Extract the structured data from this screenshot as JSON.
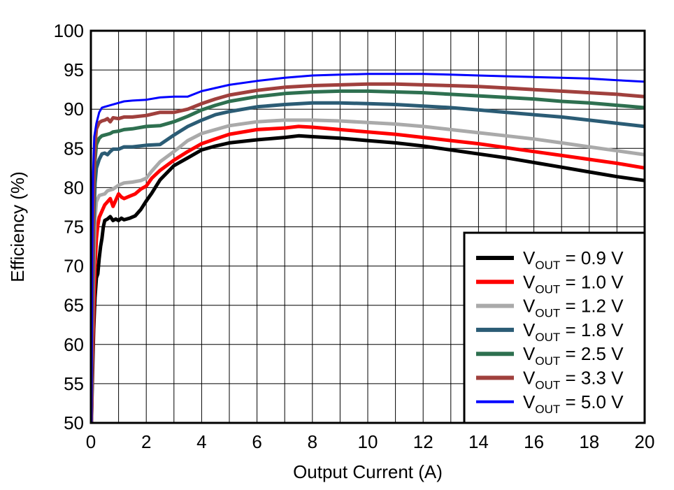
{
  "chart_data": {
    "type": "line",
    "xlabel": "Output Current (A)",
    "ylabel": "Efficiency (%)",
    "xlim": [
      0,
      20
    ],
    "ylim": [
      50,
      100
    ],
    "xticks": [
      0,
      2,
      4,
      6,
      8,
      10,
      12,
      14,
      16,
      18,
      20
    ],
    "yticks": [
      50,
      55,
      60,
      65,
      70,
      75,
      80,
      85,
      90,
      95,
      100
    ],
    "minor_x_step": 1,
    "grid": true,
    "legend_position": "bottom-right",
    "series": [
      {
        "name": "VOUT = 0.9 V",
        "legend_main": "V",
        "legend_sub": "OUT",
        "legend_rest": " = 0.9 V",
        "color": "#000000",
        "width": 5,
        "points": [
          [
            0.02,
            50
          ],
          [
            0.05,
            55
          ],
          [
            0.1,
            62
          ],
          [
            0.15,
            66
          ],
          [
            0.2,
            68.5
          ],
          [
            0.25,
            69
          ],
          [
            0.3,
            71
          ],
          [
            0.35,
            72.5
          ],
          [
            0.4,
            73.5
          ],
          [
            0.45,
            75
          ],
          [
            0.5,
            75.8
          ],
          [
            0.6,
            76
          ],
          [
            0.7,
            76.3
          ],
          [
            0.8,
            75.8
          ],
          [
            0.9,
            76
          ],
          [
            1.0,
            75.8
          ],
          [
            1.1,
            76.1
          ],
          [
            1.2,
            75.9
          ],
          [
            1.4,
            76.1
          ],
          [
            1.6,
            76.4
          ],
          [
            1.8,
            77.2
          ],
          [
            2.0,
            78.3
          ],
          [
            2.2,
            79.3
          ],
          [
            2.5,
            81
          ],
          [
            3.0,
            82.8
          ],
          [
            3.5,
            83.8
          ],
          [
            4.0,
            84.8
          ],
          [
            4.5,
            85.3
          ],
          [
            5.0,
            85.7
          ],
          [
            6.0,
            86.1
          ],
          [
            7.0,
            86.4
          ],
          [
            7.5,
            86.6
          ],
          [
            8.0,
            86.5
          ],
          [
            9.0,
            86.3
          ],
          [
            10.0,
            86
          ],
          [
            11.0,
            85.7
          ],
          [
            12.0,
            85.3
          ],
          [
            13.0,
            84.8
          ],
          [
            14.0,
            84.3
          ],
          [
            15.0,
            83.8
          ],
          [
            16.0,
            83.2
          ],
          [
            17.0,
            82.6
          ],
          [
            18.0,
            82
          ],
          [
            19.0,
            81.4
          ],
          [
            20.0,
            80.9
          ]
        ]
      },
      {
        "name": "VOUT = 1.0 V",
        "legend_main": "V",
        "legend_sub": "OUT",
        "legend_rest": " = 1.0 V",
        "color": "#ff0000",
        "width": 5,
        "points": [
          [
            0.02,
            50
          ],
          [
            0.05,
            57
          ],
          [
            0.1,
            64
          ],
          [
            0.15,
            70
          ],
          [
            0.2,
            73.5
          ],
          [
            0.25,
            75.2
          ],
          [
            0.3,
            76.2
          ],
          [
            0.4,
            77
          ],
          [
            0.5,
            77.8
          ],
          [
            0.6,
            78.2
          ],
          [
            0.7,
            78.6
          ],
          [
            0.8,
            77.6
          ],
          [
            0.9,
            78.4
          ],
          [
            1.0,
            79.2
          ],
          [
            1.1,
            78.8
          ],
          [
            1.2,
            78.6
          ],
          [
            1.4,
            78.9
          ],
          [
            1.6,
            79.2
          ],
          [
            1.8,
            79.8
          ],
          [
            2.0,
            80.2
          ],
          [
            2.2,
            81.2
          ],
          [
            2.5,
            82.2
          ],
          [
            3.0,
            83.5
          ],
          [
            3.5,
            84.6
          ],
          [
            4.0,
            85.6
          ],
          [
            4.5,
            86.2
          ],
          [
            5.0,
            86.8
          ],
          [
            6.0,
            87.4
          ],
          [
            7.0,
            87.6
          ],
          [
            7.5,
            87.8
          ],
          [
            8.0,
            87.7
          ],
          [
            9.0,
            87.4
          ],
          [
            10.0,
            87.1
          ],
          [
            11.0,
            86.8
          ],
          [
            12.0,
            86.4
          ],
          [
            13.0,
            86
          ],
          [
            14.0,
            85.6
          ],
          [
            15.0,
            85.1
          ],
          [
            16.0,
            84.6
          ],
          [
            17.0,
            84.1
          ],
          [
            18.0,
            83.6
          ],
          [
            19.0,
            83.1
          ],
          [
            20.0,
            82.5
          ]
        ]
      },
      {
        "name": "VOUT = 1.2 V",
        "legend_main": "V",
        "legend_sub": "OUT",
        "legend_rest": " = 1.2 V",
        "color": "#aaaaaa",
        "width": 5,
        "points": [
          [
            0.02,
            50
          ],
          [
            0.05,
            60
          ],
          [
            0.1,
            70
          ],
          [
            0.15,
            76
          ],
          [
            0.2,
            78.2
          ],
          [
            0.3,
            79
          ],
          [
            0.4,
            79.1
          ],
          [
            0.5,
            79.2
          ],
          [
            0.6,
            79.6
          ],
          [
            0.8,
            79.8
          ],
          [
            1.0,
            80.3
          ],
          [
            1.2,
            80.6
          ],
          [
            1.5,
            80.7
          ],
          [
            1.8,
            80.9
          ],
          [
            2.0,
            81.2
          ],
          [
            2.2,
            82.1
          ],
          [
            2.5,
            83.3
          ],
          [
            3.0,
            84.6
          ],
          [
            3.5,
            86
          ],
          [
            4.0,
            86.9
          ],
          [
            4.5,
            87.4
          ],
          [
            5.0,
            87.9
          ],
          [
            6.0,
            88.4
          ],
          [
            7.0,
            88.6
          ],
          [
            8.0,
            88.6
          ],
          [
            9.0,
            88.5
          ],
          [
            10.0,
            88.3
          ],
          [
            11.0,
            88.1
          ],
          [
            12.0,
            87.8
          ],
          [
            13.0,
            87.4
          ],
          [
            14.0,
            87
          ],
          [
            15.0,
            86.6
          ],
          [
            16.0,
            86.2
          ],
          [
            17.0,
            85.7
          ],
          [
            18.0,
            85.2
          ],
          [
            19.0,
            84.7
          ],
          [
            20.0,
            84.2
          ]
        ]
      },
      {
        "name": "VOUT = 1.8 V",
        "legend_main": "V",
        "legend_sub": "OUT",
        "legend_rest": " = 1.8 V",
        "color": "#2b5c75",
        "width": 5,
        "points": [
          [
            0.02,
            50
          ],
          [
            0.05,
            62
          ],
          [
            0.1,
            75
          ],
          [
            0.15,
            80.5
          ],
          [
            0.2,
            82.5
          ],
          [
            0.3,
            83.6
          ],
          [
            0.4,
            84.3
          ],
          [
            0.5,
            84.4
          ],
          [
            0.6,
            84.2
          ],
          [
            0.7,
            84.6
          ],
          [
            0.8,
            84.9
          ],
          [
            1.0,
            84.9
          ],
          [
            1.2,
            85.2
          ],
          [
            1.5,
            85.2
          ],
          [
            2.0,
            85.4
          ],
          [
            2.5,
            85.5
          ],
          [
            3.0,
            86.7
          ],
          [
            3.5,
            87.8
          ],
          [
            4.0,
            88.6
          ],
          [
            4.5,
            89.3
          ],
          [
            5.0,
            89.7
          ],
          [
            6.0,
            90.3
          ],
          [
            7.0,
            90.6
          ],
          [
            8.0,
            90.8
          ],
          [
            9.0,
            90.8
          ],
          [
            10.0,
            90.7
          ],
          [
            11.0,
            90.6
          ],
          [
            12.0,
            90.4
          ],
          [
            13.0,
            90.2
          ],
          [
            14.0,
            89.9
          ],
          [
            15.0,
            89.6
          ],
          [
            16.0,
            89.3
          ],
          [
            17.0,
            89
          ],
          [
            18.0,
            88.6
          ],
          [
            19.0,
            88.2
          ],
          [
            20.0,
            87.8
          ]
        ]
      },
      {
        "name": "VOUT = 2.5 V",
        "legend_main": "V",
        "legend_sub": "OUT",
        "legend_rest": " = 2.5 V",
        "color": "#2e7050",
        "width": 5,
        "points": [
          [
            0.02,
            50
          ],
          [
            0.05,
            65
          ],
          [
            0.1,
            78
          ],
          [
            0.15,
            83.5
          ],
          [
            0.2,
            85.5
          ],
          [
            0.3,
            86.3
          ],
          [
            0.4,
            86.6
          ],
          [
            0.5,
            86.7
          ],
          [
            0.6,
            86.8
          ],
          [
            0.7,
            86.9
          ],
          [
            0.8,
            87.1
          ],
          [
            1.0,
            87.2
          ],
          [
            1.2,
            87.4
          ],
          [
            1.5,
            87.5
          ],
          [
            2.0,
            87.8
          ],
          [
            2.5,
            87.9
          ],
          [
            3.0,
            88.4
          ],
          [
            3.5,
            89.1
          ],
          [
            4.0,
            89.9
          ],
          [
            4.5,
            90.5
          ],
          [
            5.0,
            91
          ],
          [
            6.0,
            91.6
          ],
          [
            7.0,
            92
          ],
          [
            8.0,
            92.2
          ],
          [
            9.0,
            92.3
          ],
          [
            10.0,
            92.3
          ],
          [
            11.0,
            92.2
          ],
          [
            12.0,
            92.1
          ],
          [
            13.0,
            91.9
          ],
          [
            14.0,
            91.7
          ],
          [
            15.0,
            91.5
          ],
          [
            16.0,
            91.3
          ],
          [
            17.0,
            91
          ],
          [
            18.0,
            90.8
          ],
          [
            19.0,
            90.5
          ],
          [
            20.0,
            90.2
          ]
        ]
      },
      {
        "name": "VOUT = 3.3 V",
        "legend_main": "V",
        "legend_sub": "OUT",
        "legend_rest": " = 3.3 V",
        "color": "#a0403d",
        "width": 5,
        "points": [
          [
            0.02,
            50
          ],
          [
            0.05,
            68
          ],
          [
            0.1,
            80
          ],
          [
            0.15,
            85.5
          ],
          [
            0.2,
            87.5
          ],
          [
            0.3,
            88.3
          ],
          [
            0.4,
            88.5
          ],
          [
            0.5,
            88.6
          ],
          [
            0.6,
            88.8
          ],
          [
            0.7,
            88.4
          ],
          [
            0.8,
            88.9
          ],
          [
            1.0,
            88.8
          ],
          [
            1.2,
            89
          ],
          [
            1.5,
            89
          ],
          [
            2.0,
            89.2
          ],
          [
            2.5,
            89.6
          ],
          [
            3.0,
            89.6
          ],
          [
            3.5,
            90
          ],
          [
            4.0,
            90.7
          ],
          [
            4.5,
            91.3
          ],
          [
            5.0,
            91.8
          ],
          [
            6.0,
            92.4
          ],
          [
            7.0,
            92.8
          ],
          [
            8.0,
            93
          ],
          [
            9.0,
            93.1
          ],
          [
            10.0,
            93.2
          ],
          [
            11.0,
            93.2
          ],
          [
            12.0,
            93.1
          ],
          [
            13.0,
            93
          ],
          [
            14.0,
            92.9
          ],
          [
            15.0,
            92.7
          ],
          [
            16.0,
            92.5
          ],
          [
            17.0,
            92.3
          ],
          [
            18.0,
            92.1
          ],
          [
            19.0,
            91.9
          ],
          [
            20.0,
            91.6
          ]
        ]
      },
      {
        "name": "VOUT = 5.0 V",
        "legend_main": "V",
        "legend_sub": "OUT",
        "legend_rest": " = 5.0 V",
        "color": "#0000ff",
        "width": 3,
        "points": [
          [
            0.02,
            50
          ],
          [
            0.05,
            72
          ],
          [
            0.08,
            82
          ],
          [
            0.12,
            86.5
          ],
          [
            0.2,
            88.2
          ],
          [
            0.3,
            89.6
          ],
          [
            0.4,
            90.2
          ],
          [
            0.5,
            90.3
          ],
          [
            0.7,
            90.5
          ],
          [
            1.0,
            90.8
          ],
          [
            1.2,
            91
          ],
          [
            1.5,
            91.1
          ],
          [
            2.0,
            91.2
          ],
          [
            2.5,
            91.5
          ],
          [
            3.0,
            91.6
          ],
          [
            3.5,
            91.6
          ],
          [
            4.0,
            92.3
          ],
          [
            4.5,
            92.7
          ],
          [
            5.0,
            93.1
          ],
          [
            6.0,
            93.6
          ],
          [
            7.0,
            94
          ],
          [
            8.0,
            94.3
          ],
          [
            9.0,
            94.4
          ],
          [
            10.0,
            94.5
          ],
          [
            11.0,
            94.5
          ],
          [
            12.0,
            94.5
          ],
          [
            13.0,
            94.4
          ],
          [
            14.0,
            94.3
          ],
          [
            15.0,
            94.2
          ],
          [
            16.0,
            94.1
          ],
          [
            17.0,
            94
          ],
          [
            18.0,
            93.9
          ],
          [
            19.0,
            93.7
          ],
          [
            20.0,
            93.5
          ]
        ]
      }
    ]
  }
}
